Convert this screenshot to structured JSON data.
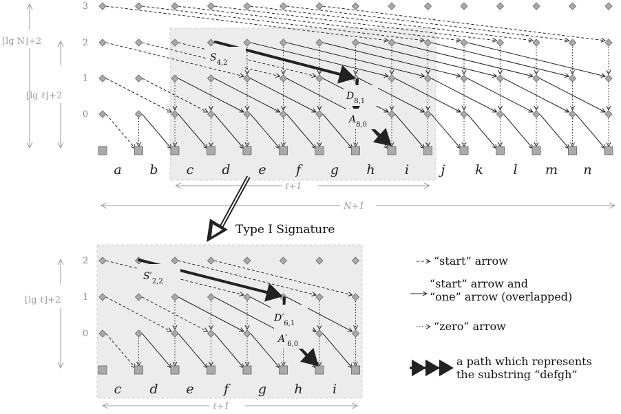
{
  "top_diagram": {
    "letters": [
      "a",
      "b",
      "c",
      "d",
      "e",
      "f",
      "g",
      "h",
      "i",
      "j",
      "k",
      "l",
      "m",
      "n"
    ],
    "levels": [
      "0",
      "1",
      "2",
      "3"
    ],
    "height_outer": "⌊lg N⌋+2",
    "height_inner": "⌊lg ℓ⌋+2",
    "width_window": "ℓ+1",
    "width_all": "N+1",
    "path_labels": {
      "s": "S4,2",
      "d": "D8,1",
      "a": "A8,0"
    }
  },
  "transition": {
    "label": "Type I Signature"
  },
  "bottom_diagram": {
    "letters": [
      "c",
      "d",
      "e",
      "f",
      "g",
      "h",
      "i"
    ],
    "levels": [
      "0",
      "1",
      "2"
    ],
    "height": "⌊lg ℓ⌋+2",
    "width": "ℓ+1",
    "path_labels": {
      "s": "S′2,2",
      "d": "D′6,1",
      "a": "A′6,0"
    }
  },
  "legend": {
    "start": "“start” arrow",
    "start_one_line1": "“start” arrow and",
    "start_one_line2": "“one” arrow (overlapped)",
    "zero": "“zero” arrow",
    "path_line1": "a path which represents",
    "path_line2": "the substring “defgh”"
  }
}
